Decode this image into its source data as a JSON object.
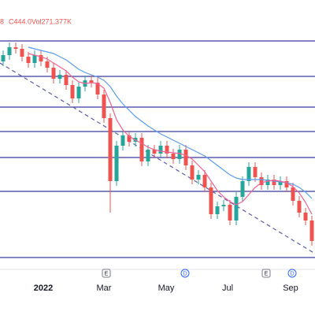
{
  "chart_data": {
    "type": "candlestick",
    "header": {
      "fragment": "8",
      "close": "C444.0",
      "volume": "Vol271.377K"
    },
    "ylim": [
      410,
      700
    ],
    "open": [
      672,
      680,
      690,
      688,
      678,
      670,
      680,
      672,
      664,
      650,
      655,
      642,
      625,
      640,
      648,
      645,
      630,
      600,
      520,
      565,
      578,
      570,
      575,
      545,
      560,
      555,
      565,
      555,
      548,
      560,
      540,
      522,
      528,
      512,
      478,
      488,
      490,
      470,
      500,
      520,
      538,
      525,
      515,
      522,
      515,
      520,
      512,
      495,
      480,
      470
    ],
    "high": [
      686,
      696,
      696,
      694,
      684,
      686,
      686,
      678,
      670,
      661,
      661,
      648,
      646,
      654,
      654,
      651,
      636,
      606,
      571,
      584,
      584,
      581,
      581,
      566,
      566,
      571,
      571,
      561,
      566,
      566,
      546,
      534,
      534,
      518,
      494,
      496,
      496,
      506,
      526,
      544,
      544,
      531,
      528,
      528,
      526,
      526,
      518,
      501,
      486,
      476
    ],
    "low": [
      666,
      674,
      682,
      672,
      664,
      664,
      666,
      658,
      644,
      644,
      636,
      619,
      619,
      634,
      639,
      624,
      594,
      480,
      514,
      559,
      564,
      564,
      539,
      539,
      549,
      549,
      549,
      542,
      542,
      534,
      516,
      516,
      506,
      472,
      472,
      482,
      464,
      464,
      494,
      514,
      519,
      509,
      509,
      509,
      509,
      506,
      489,
      474,
      464,
      438
    ],
    "close": [
      680,
      690,
      688,
      678,
      670,
      680,
      672,
      664,
      650,
      655,
      642,
      625,
      640,
      648,
      645,
      630,
      600,
      520,
      565,
      578,
      570,
      575,
      545,
      560,
      555,
      565,
      555,
      548,
      560,
      540,
      522,
      528,
      512,
      478,
      488,
      490,
      470,
      500,
      520,
      538,
      525,
      515,
      522,
      515,
      520,
      512,
      495,
      480,
      470,
      444
    ],
    "up_color": "#26a69a",
    "down_color": "#ef5350",
    "moving_averages": [
      {
        "color": "#5b9cf0",
        "values": [
          null,
          null,
          null,
          null,
          690,
          688,
          686,
          684,
          682,
          678,
          674,
          668,
          662,
          658,
          655,
          652,
          648,
          640,
          628,
          618,
          610,
          602,
          596,
          590,
          585,
          580,
          576,
          572,
          568,
          564,
          560,
          556,
          552,
          546,
          540,
          534,
          528,
          524,
          522,
          522,
          522,
          522,
          521,
          520,
          519,
          518,
          516,
          512,
          506,
          498
        ]
      },
      {
        "color": "#f06292",
        "values": [
          null,
          null,
          null,
          null,
          682,
          680,
          678,
          675,
          670,
          665,
          660,
          652,
          646,
          644,
          645,
          644,
          638,
          620,
          598,
          585,
          577,
          572,
          568,
          563,
          560,
          558,
          557,
          556,
          555,
          553,
          548,
          540,
          532,
          520,
          508,
          500,
          494,
          490,
          494,
          503,
          512,
          518,
          520,
          521,
          520,
          518,
          513,
          505,
          493,
          478
        ]
      }
    ],
    "levels": [
      698,
      653,
      614,
      583,
      550,
      507,
      423
    ],
    "level_color": "#3b3b9e",
    "trendline": {
      "start": 670,
      "end": 428,
      "color": "#5a5aa8"
    },
    "x_labels": [
      "2022",
      "Mar",
      "May",
      "Jul",
      "Sep"
    ],
    "events": [
      "E",
      "D",
      "E",
      "D"
    ]
  }
}
